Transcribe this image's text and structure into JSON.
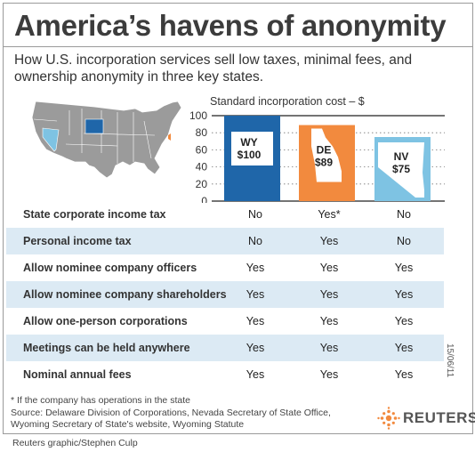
{
  "header": {
    "title": "America’s havens of anonymity",
    "subtitle": "How U.S. incorporation services sell low taxes, minimal fees, and ownership anonymity in three key states."
  },
  "colors": {
    "wy": "#1f66a9",
    "de": "#f28a3e",
    "nv": "#7ec3e3",
    "map_land": "#9b9b9b",
    "row_shade": "#dceaf4"
  },
  "chart_data": {
    "type": "bar",
    "title": "Standard incorporation cost – $",
    "categories": [
      "WY",
      "DE",
      "NV"
    ],
    "values": [
      100,
      89,
      75
    ],
    "value_labels": [
      "$100",
      "$89",
      "$75"
    ],
    "ylim": [
      0,
      100
    ],
    "yticks": [
      0,
      20,
      40,
      60,
      80,
      100
    ],
    "grid": true,
    "legend": "none"
  },
  "table": {
    "rows": [
      {
        "label": "State corporate income tax",
        "wy": "No",
        "de": "Yes*",
        "nv": "No"
      },
      {
        "label": "Personal income tax",
        "wy": "No",
        "de": "Yes",
        "nv": "No"
      },
      {
        "label": "Allow nominee company officers",
        "wy": "Yes",
        "de": "Yes",
        "nv": "Yes"
      },
      {
        "label": "Allow nominee company shareholders",
        "wy": "Yes",
        "de": "Yes",
        "nv": "Yes"
      },
      {
        "label": "Allow one-person corporations",
        "wy": "Yes",
        "de": "Yes",
        "nv": "Yes"
      },
      {
        "label": "Meetings can be held anywhere",
        "wy": "Yes",
        "de": "Yes",
        "nv": "Yes"
      },
      {
        "label": "Nominal annual fees",
        "wy": "Yes",
        "de": "Yes",
        "nv": "Yes"
      }
    ]
  },
  "footer": {
    "footnote": "* If the company has operations in the state",
    "source": "Source: Delaware Division of Corporations, Nevada Secretary of State Office, Wyoming Secretary of State's website, Wyoming Statute",
    "datestamp": "15/06/11",
    "logo_text": "REUTERS",
    "credit": "Reuters graphic/Stephen Culp"
  }
}
